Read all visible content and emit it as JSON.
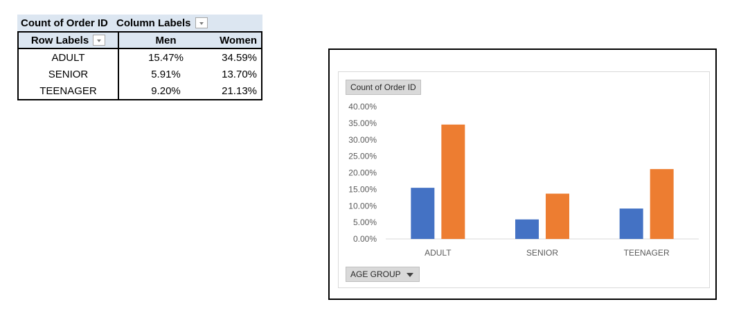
{
  "pivot": {
    "value_field": "Count of Order ID",
    "column_labels": "Column Labels",
    "row_labels": "Row Labels",
    "columns": [
      "Men",
      "Women"
    ],
    "rows": [
      {
        "label": "ADULT",
        "men": "15.47%",
        "women": "34.59%"
      },
      {
        "label": "SENIOR",
        "men": "5.91%",
        "women": "13.70%"
      },
      {
        "label": "TEENAGER",
        "men": "9.20%",
        "women": "21.13%"
      }
    ]
  },
  "chart_data": {
    "type": "bar",
    "value_button": "Count of Order ID",
    "axis_button": "AGE GROUP",
    "categories": [
      "ADULT",
      "SENIOR",
      "TEENAGER"
    ],
    "series": [
      {
        "values": [
          15.47,
          5.91,
          9.2
        ],
        "color": "#4472c4"
      },
      {
        "values": [
          34.59,
          13.7,
          21.13
        ],
        "color": "#ed7d31"
      }
    ],
    "y_ticks": [
      "0.00%",
      "5.00%",
      "10.00%",
      "15.00%",
      "20.00%",
      "25.00%",
      "30.00%",
      "35.00%",
      "40.00%"
    ],
    "ylim": [
      0,
      40
    ],
    "grid": false,
    "legend": "none"
  }
}
